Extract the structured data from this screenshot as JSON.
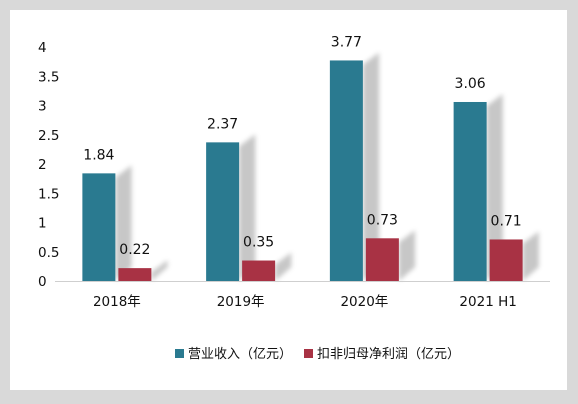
{
  "chart_data": {
    "type": "bar",
    "title": "",
    "xlabel": "",
    "ylabel": "",
    "categories": [
      "2018年",
      "2019年",
      "2020年",
      "2021 H1"
    ],
    "series": [
      {
        "name": "营业收入（亿元）",
        "color": "#2a7a90",
        "values": [
          1.84,
          2.37,
          3.77,
          3.06
        ]
      },
      {
        "name": "扣非归母净利润（亿元）",
        "color": "#a83244",
        "values": [
          0.22,
          0.35,
          0.73,
          0.71
        ]
      }
    ],
    "ylim": [
      0,
      4
    ],
    "yticks": [
      "0",
      "0.5",
      "1",
      "1.5",
      "2",
      "2.5",
      "3",
      "3.5",
      "4"
    ],
    "grid": false,
    "legend_position": "bottom"
  }
}
